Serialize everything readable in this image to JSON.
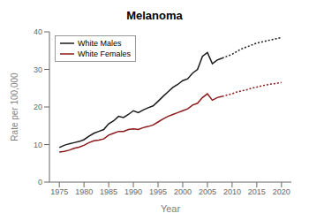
{
  "chart_data": {
    "type": "line",
    "title": "Melanoma",
    "x_label": "Year",
    "y_label": "Rate per 100,000",
    "xlim": [
      1973,
      2022
    ],
    "ylim": [
      0,
      40
    ],
    "xticks": [
      1975,
      1980,
      1985,
      1990,
      1995,
      2000,
      2005,
      2010,
      2015,
      2020
    ],
    "yticks": [
      0,
      10,
      20,
      30,
      40
    ],
    "grid": false,
    "legend": "upper left",
    "series": [
      {
        "name": "White Males",
        "color": "#1a1a1a",
        "line_style": "solid",
        "x": [
          1975,
          1976,
          1977,
          1978,
          1979,
          1980,
          1981,
          1982,
          1983,
          1984,
          1985,
          1986,
          1987,
          1988,
          1989,
          1990,
          1991,
          1992,
          1993,
          1994,
          1995,
          1996,
          1997,
          1998,
          1999,
          2000,
          2001,
          2002,
          2003,
          2004,
          2005,
          2006,
          2007,
          2008
        ],
        "values": [
          9.2,
          9.8,
          10.2,
          10.5,
          10.8,
          11.3,
          12.2,
          13.0,
          13.5,
          14.0,
          15.5,
          16.3,
          17.5,
          17.2,
          18.0,
          19.0,
          18.5,
          19.2,
          19.8,
          20.3,
          21.5,
          22.8,
          24.0,
          25.2,
          26.0,
          27.0,
          27.5,
          29.0,
          30.0,
          33.5,
          34.5,
          31.5,
          32.5,
          33.0
        ]
      },
      {
        "name": "White Females",
        "color": "#8b1a1a",
        "line_style": "solid",
        "x": [
          1975,
          1976,
          1977,
          1978,
          1979,
          1980,
          1981,
          1982,
          1983,
          1984,
          1985,
          1986,
          1987,
          1988,
          1989,
          1990,
          1991,
          1992,
          1993,
          1994,
          1995,
          1996,
          1997,
          1998,
          1999,
          2000,
          2001,
          2002,
          2003,
          2004,
          2005,
          2006,
          2007,
          2008
        ],
        "values": [
          8.0,
          8.2,
          8.5,
          9.0,
          9.3,
          9.8,
          10.5,
          11.0,
          11.2,
          11.5,
          12.5,
          13.0,
          13.5,
          13.5,
          14.0,
          14.2,
          14.0,
          14.5,
          14.8,
          15.2,
          16.0,
          16.8,
          17.5,
          18.0,
          18.5,
          19.0,
          19.5,
          20.5,
          21.0,
          22.5,
          23.5,
          21.8,
          22.5,
          22.8
        ]
      },
      {
        "name": "White Males",
        "color": "#1a1a1a",
        "line_style": "dotted",
        "x": [
          2008,
          2009,
          2010,
          2011,
          2012,
          2013,
          2014,
          2015,
          2016,
          2017,
          2018,
          2019,
          2020
        ],
        "values": [
          33.0,
          33.5,
          34.0,
          34.8,
          35.5,
          36.0,
          36.5,
          37.0,
          37.3,
          37.6,
          37.9,
          38.2,
          38.5
        ]
      },
      {
        "name": "White Females",
        "color": "#8b1a1a",
        "line_style": "dotted",
        "x": [
          2008,
          2009,
          2010,
          2011,
          2012,
          2013,
          2014,
          2015,
          2016,
          2017,
          2018,
          2019,
          2020
        ],
        "values": [
          22.8,
          23.2,
          23.5,
          24.0,
          24.3,
          24.6,
          25.0,
          25.3,
          25.6,
          25.9,
          26.1,
          26.3,
          26.5
        ]
      }
    ]
  }
}
